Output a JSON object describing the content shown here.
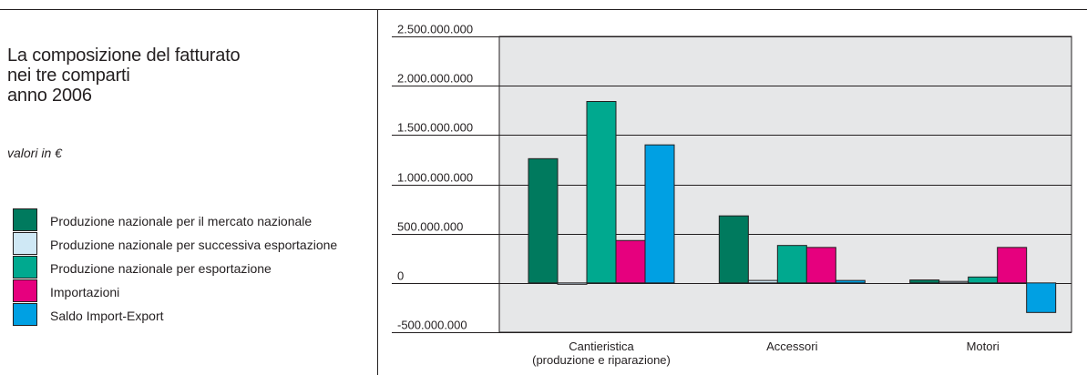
{
  "chart_data": {
    "type": "bar",
    "title_lines": [
      "La composizione del fatturato",
      "nei tre comparti",
      "anno 2006"
    ],
    "subtitle": "valori in €",
    "categories": [
      [
        "Cantieristica",
        "(produzione e riparazione)"
      ],
      [
        "Accessori"
      ],
      [
        "Motori"
      ]
    ],
    "ylim": [
      -500000000,
      2500000000
    ],
    "yticks": [
      {
        "value": 2500000000,
        "label": "2.500.000.000"
      },
      {
        "value": 2000000000,
        "label": "2.000.000.000"
      },
      {
        "value": 1500000000,
        "label": "1.500.000.000"
      },
      {
        "value": 1000000000,
        "label": "1.000.000.000"
      },
      {
        "value": 500000000,
        "label": "500.000.000"
      },
      {
        "value": 0,
        "label": "0"
      },
      {
        "value": -500000000,
        "label": "-500.000.000"
      }
    ],
    "grid": true,
    "legend_position": "left",
    "series": [
      {
        "name": "Produzione nazionale per il mercato nazionale",
        "color": "#007a5e",
        "values": [
          1260000000,
          680000000,
          30000000
        ]
      },
      {
        "name": "Produzione nazionale per successiva esportazione",
        "color": "#cfe8f5",
        "values": [
          0,
          25000000,
          15000000
        ]
      },
      {
        "name": "Produzione nazionale per esportazione",
        "color": "#00a98f",
        "values": [
          1840000000,
          380000000,
          60000000
        ]
      },
      {
        "name": "Importazioni",
        "color": "#e6007e",
        "values": [
          430000000,
          360000000,
          360000000
        ]
      },
      {
        "name": "Saldo Import-Export",
        "color": "#00a0e3",
        "values": [
          1400000000,
          25000000,
          -300000000
        ]
      }
    ],
    "plot_background": "#e6e7e8"
  }
}
